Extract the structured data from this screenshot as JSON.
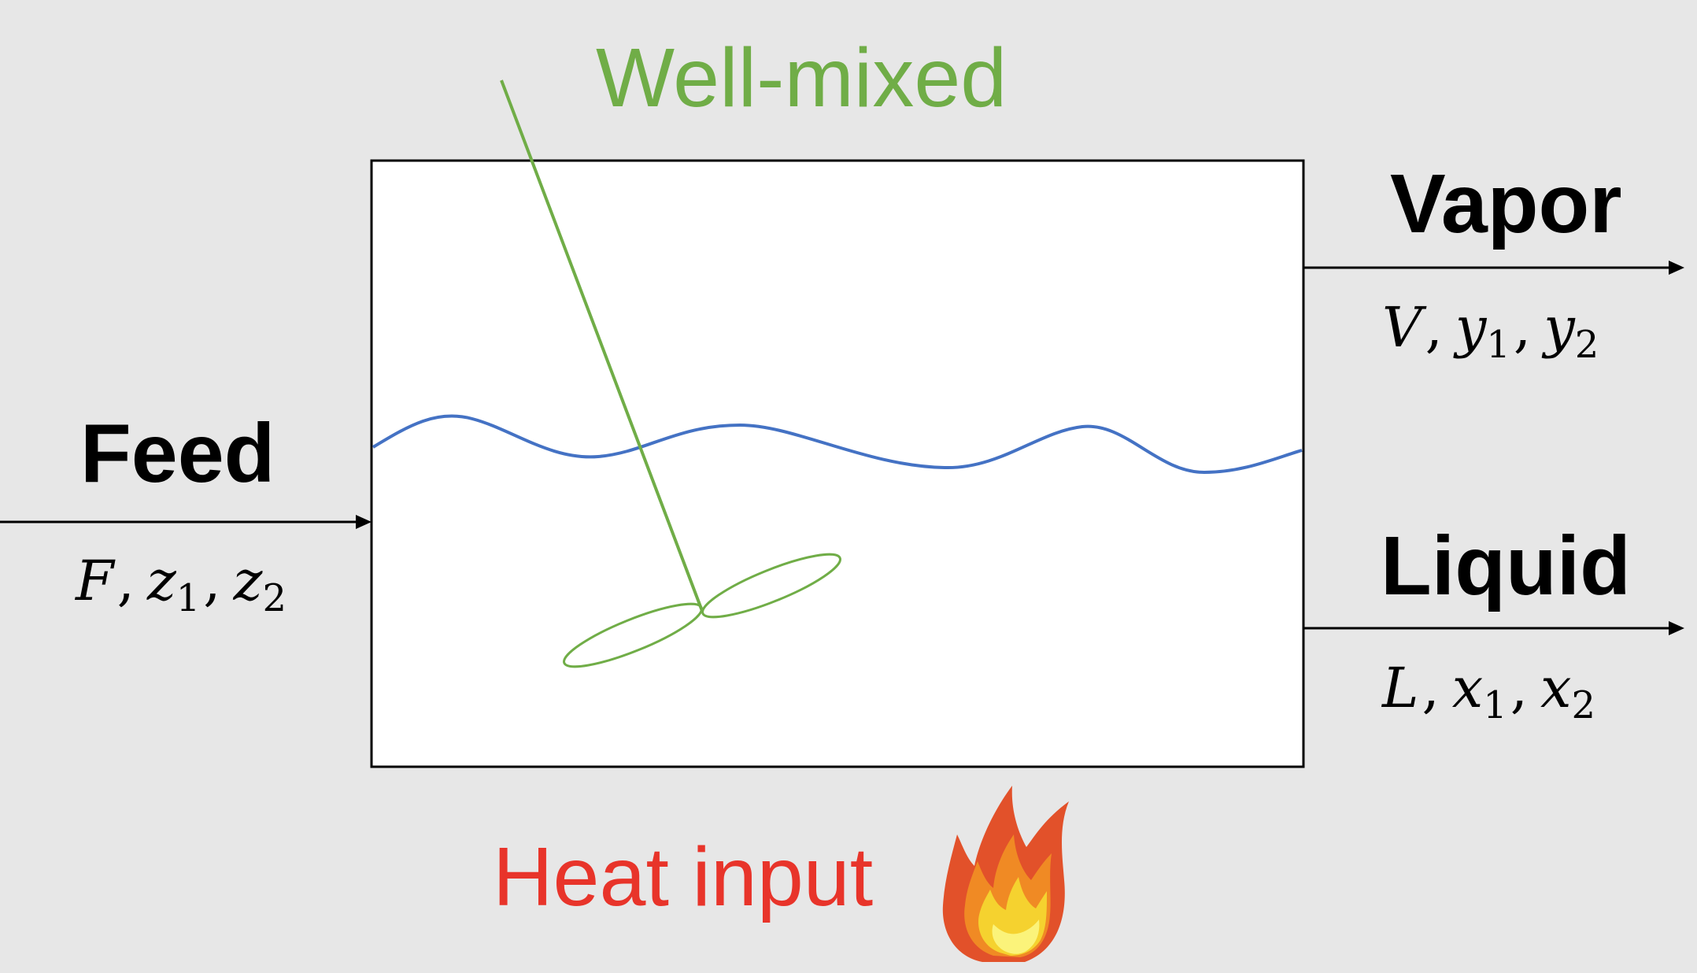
{
  "labels": {
    "well_mixed": "Well-mixed",
    "feed": "Feed",
    "vapor": "Vapor",
    "liquid": "Liquid",
    "heat_input": "Heat input"
  },
  "streams": {
    "feed": {
      "symbol": "F",
      "comp1": "z",
      "comp2": "z",
      "sub1": "1",
      "sub2": "2"
    },
    "vapor": {
      "symbol": "V",
      "comp1": "y",
      "comp2": "y",
      "sub1": "1",
      "sub2": "2"
    },
    "liquid": {
      "symbol": "L",
      "comp1": "x",
      "comp2": "x",
      "sub1": "1",
      "sub2": "2"
    }
  },
  "icons": {
    "agitator": "agitator-icon",
    "flame": "flame-icon",
    "liquid_surface": "liquid-surface-wave"
  },
  "colors": {
    "background": "#e7e7e7",
    "vessel_fill": "#ffffff",
    "vessel_stroke": "#000000",
    "agitator": "#70ad47",
    "liquid_surface": "#4472c4",
    "heat_label": "#e8342a",
    "flame_outer": "#e2512a",
    "flame_mid": "#f08a24",
    "flame_inner": "#f5d22f",
    "flame_core": "#fbf37a"
  }
}
